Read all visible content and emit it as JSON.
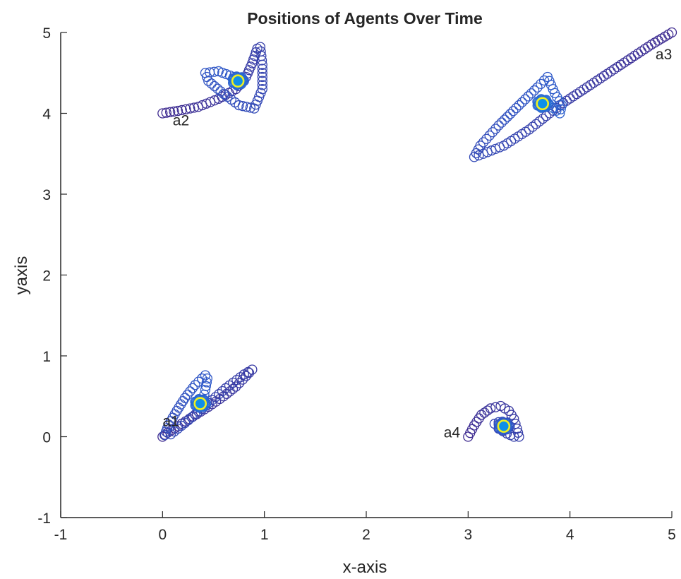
{
  "chart_data": {
    "type": "scatter",
    "title": "Positions of Agents Over Time",
    "xlabel": "x-axis",
    "ylabel": "yaxis",
    "xlim": [
      -1,
      5
    ],
    "ylim": [
      -1,
      5
    ],
    "xticks": [
      -1,
      0,
      1,
      2,
      3,
      4,
      5
    ],
    "yticks": [
      -1,
      0,
      1,
      2,
      3,
      4,
      5
    ],
    "grid": false,
    "legend": "none",
    "marker": "open-circle",
    "colors": {
      "early": "#3e2a8f",
      "mid": "#2f58c8",
      "late": "#1f7fe0",
      "final_edge": "#f0f020",
      "final_fill": "#0f90e8"
    },
    "annotations": [
      {
        "text": "a1",
        "x": 0.0,
        "y": 0.2
      },
      {
        "text": "a2",
        "x": 0.1,
        "y": 3.92
      },
      {
        "text": "a3",
        "x": 4.84,
        "y": 4.74
      },
      {
        "text": "a4",
        "x": 2.76,
        "y": 0.06
      }
    ],
    "agents": [
      {
        "name": "a1",
        "path": [
          [
            0.0,
            0.0
          ],
          [
            0.05,
            0.05
          ],
          [
            0.15,
            0.13
          ],
          [
            0.3,
            0.25
          ],
          [
            0.45,
            0.37
          ],
          [
            0.6,
            0.5
          ],
          [
            0.72,
            0.62
          ],
          [
            0.82,
            0.75
          ],
          [
            0.88,
            0.83
          ],
          [
            0.8,
            0.77
          ],
          [
            0.62,
            0.6
          ],
          [
            0.42,
            0.38
          ],
          [
            0.22,
            0.17
          ],
          [
            0.08,
            0.03
          ],
          [
            0.02,
            0.02
          ],
          [
            0.06,
            0.15
          ],
          [
            0.14,
            0.32
          ],
          [
            0.22,
            0.48
          ],
          [
            0.32,
            0.64
          ],
          [
            0.42,
            0.76
          ],
          [
            0.44,
            0.72
          ],
          [
            0.42,
            0.58
          ],
          [
            0.4,
            0.46
          ],
          [
            0.38,
            0.4
          ]
        ],
        "final": [
          0.37,
          0.41
        ]
      },
      {
        "name": "a2",
        "path": [
          [
            0.0,
            4.0
          ],
          [
            0.15,
            4.03
          ],
          [
            0.35,
            4.08
          ],
          [
            0.55,
            4.18
          ],
          [
            0.72,
            4.3
          ],
          [
            0.82,
            4.45
          ],
          [
            0.88,
            4.62
          ],
          [
            0.93,
            4.8
          ],
          [
            0.96,
            4.82
          ],
          [
            0.98,
            4.6
          ],
          [
            0.98,
            4.3
          ],
          [
            0.9,
            4.06
          ],
          [
            0.75,
            4.1
          ],
          [
            0.6,
            4.24
          ],
          [
            0.45,
            4.4
          ],
          [
            0.42,
            4.5
          ],
          [
            0.55,
            4.52
          ],
          [
            0.7,
            4.45
          ],
          [
            0.78,
            4.4
          ]
        ],
        "final": [
          0.74,
          4.4
        ]
      },
      {
        "name": "a3",
        "path": [
          [
            5.0,
            5.0
          ],
          [
            4.8,
            4.85
          ],
          [
            4.5,
            4.6
          ],
          [
            4.2,
            4.35
          ],
          [
            3.9,
            4.1
          ],
          [
            3.6,
            3.8
          ],
          [
            3.35,
            3.6
          ],
          [
            3.15,
            3.5
          ],
          [
            3.06,
            3.46
          ],
          [
            3.12,
            3.6
          ],
          [
            3.3,
            3.85
          ],
          [
            3.5,
            4.1
          ],
          [
            3.68,
            4.32
          ],
          [
            3.78,
            4.45
          ],
          [
            3.85,
            4.25
          ],
          [
            3.92,
            4.1
          ],
          [
            3.9,
            4.0
          ],
          [
            3.8,
            4.1
          ]
        ],
        "final": [
          3.73,
          4.12
        ]
      },
      {
        "name": "a4",
        "path": [
          [
            3.0,
            0.0
          ],
          [
            3.06,
            0.14
          ],
          [
            3.13,
            0.27
          ],
          [
            3.22,
            0.35
          ],
          [
            3.32,
            0.38
          ],
          [
            3.4,
            0.32
          ],
          [
            3.45,
            0.22
          ],
          [
            3.48,
            0.1
          ],
          [
            3.5,
            0.0
          ],
          [
            3.45,
            0.0
          ],
          [
            3.38,
            0.04
          ],
          [
            3.3,
            0.1
          ],
          [
            3.26,
            0.16
          ],
          [
            3.3,
            0.18
          ],
          [
            3.36,
            0.14
          ]
        ],
        "final": [
          3.35,
          0.13
        ]
      }
    ]
  }
}
